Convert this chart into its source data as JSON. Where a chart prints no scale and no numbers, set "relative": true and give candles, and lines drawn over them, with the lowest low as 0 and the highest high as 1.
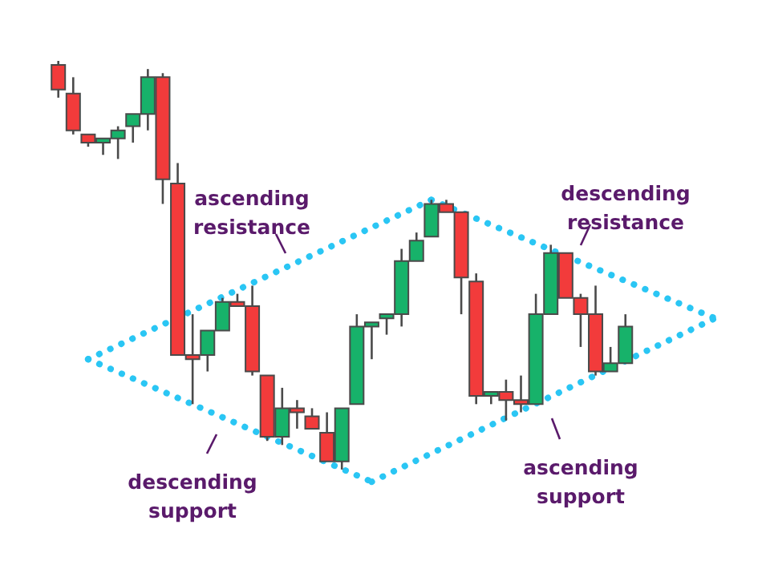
{
  "chart_data": {
    "type": "candlestick",
    "relative": true,
    "categories": [
      null,
      null,
      null,
      null,
      null,
      null,
      null,
      null,
      null,
      null,
      null,
      null,
      null,
      null,
      null,
      null,
      null,
      null,
      null,
      null,
      null,
      null,
      null,
      null,
      null,
      null,
      null,
      null,
      null,
      null,
      null,
      null,
      null,
      null,
      null,
      null,
      null,
      null,
      null,
      null,
      null,
      null,
      null,
      null,
      null
    ],
    "ohlc": [
      [
        0.99,
        1,
        0.91,
        0.93
      ],
      [
        0.92,
        0.96,
        0.82,
        0.83
      ],
      [
        0.82,
        0.82,
        0.79,
        0.8
      ],
      [
        0.8,
        0.81,
        0.77,
        0.81
      ],
      [
        0.81,
        0.84,
        0.76,
        0.83
      ],
      [
        0.84,
        0.87,
        0.8,
        0.87
      ],
      [
        0.87,
        0.98,
        0.83,
        0.96
      ],
      [
        0.96,
        0.97,
        0.65,
        0.71
      ],
      [
        0.7,
        0.75,
        0.28,
        0.28
      ],
      [
        0.28,
        0.38,
        0.16,
        0.27
      ],
      [
        0.28,
        0.34,
        0.24,
        0.34
      ],
      [
        0.34,
        0.42,
        0.34,
        0.41
      ],
      [
        0.41,
        0.43,
        0.4,
        0.4
      ],
      [
        0.4,
        0.45,
        0.23,
        0.24
      ],
      [
        0.23,
        0.23,
        0.07,
        0.08
      ],
      [
        0.08,
        0.2,
        0.06,
        0.15
      ],
      [
        0.15,
        0.17,
        0.1,
        0.14
      ],
      [
        0.13,
        0.15,
        0.1,
        0.1
      ],
      [
        0.09,
        0.14,
        0.02,
        0.02
      ],
      [
        0.02,
        0.15,
        0,
        0.15
      ],
      [
        0.16,
        0.38,
        0.16,
        0.35
      ],
      [
        0.35,
        0.36,
        0.27,
        0.36
      ],
      [
        0.37,
        0.38,
        0.33,
        0.38
      ],
      [
        0.38,
        0.54,
        0.35,
        0.51
      ],
      [
        0.51,
        0.58,
        0.51,
        0.56
      ],
      [
        0.57,
        0.66,
        0.57,
        0.65
      ],
      [
        0.65,
        0.66,
        0.63,
        0.63
      ],
      [
        0.63,
        0.63,
        0.38,
        0.47
      ],
      [
        0.46,
        0.48,
        0.16,
        0.18
      ],
      [
        0.18,
        0.19,
        0.16,
        0.19
      ],
      [
        0.19,
        0.22,
        0.12,
        0.17
      ],
      [
        0.17,
        0.23,
        0.14,
        0.16
      ],
      [
        0.16,
        0.43,
        0.16,
        0.38
      ],
      [
        0.38,
        0.55,
        0.38,
        0.53
      ],
      [
        0.53,
        0.53,
        0.42,
        0.42
      ],
      [
        0.42,
        0.43,
        0.3,
        0.38
      ],
      [
        0.38,
        0.45,
        0.23,
        0.24
      ],
      [
        0.24,
        0.3,
        0.24,
        0.26
      ],
      [
        0.26,
        0.38,
        0.26,
        0.35
      ],
      null,
      null,
      null,
      null,
      null,
      null
    ],
    "colors": [
      "#f23b3b",
      "#f23b3b",
      "#f23b3b",
      "#17b26a",
      "#17b26a",
      "#17b26a",
      "#17b26a",
      "#f23b3b",
      "#f23b3b",
      "#f23b3b",
      "#17b26a",
      "#17b26a",
      "#f23b3b",
      "#f23b3b",
      "#f23b3b",
      "#17b26a",
      "#f23b3b",
      "#f23b3b",
      "#f23b3b",
      "#17b26a",
      "#17b26a",
      "#17b26a",
      "#17b26a",
      "#17b26a",
      "#17b26a",
      "#17b26a",
      "#f23b3b",
      "#f23b3b",
      "#f23b3b",
      "#17b26a",
      "#f23b3b",
      "#f23b3b",
      "#17b26a",
      "#17b26a",
      "#f23b3b",
      "#f23b3b",
      "#f23b3b",
      "#17b26a",
      "#17b26a",
      null,
      null,
      null,
      null,
      null,
      null
    ],
    "series": [
      {
        "type": "line",
        "color": "#2ac6f4",
        "values": [
          null,
          null,
          0.27,
          null,
          null,
          null,
          null,
          null,
          null,
          null,
          null,
          null,
          null,
          null,
          null,
          null,
          null,
          null,
          null,
          null,
          null,
          null,
          null,
          null,
          null,
          0.66,
          null,
          null,
          null,
          null,
          null,
          null,
          null,
          null,
          null,
          null,
          null,
          null,
          null,
          null,
          null,
          null,
          null,
          null,
          null
        ]
      },
      {
        "type": "line",
        "color": "#2ac6f4",
        "values": [
          null,
          null,
          null,
          null,
          null,
          null,
          null,
          null,
          null,
          null,
          null,
          null,
          null,
          null,
          null,
          null,
          null,
          null,
          null,
          null,
          null,
          null,
          null,
          null,
          null,
          0.66,
          null,
          null,
          null,
          null,
          null,
          null,
          null,
          null,
          null,
          null,
          null,
          null,
          null,
          null,
          null,
          null,
          null,
          null,
          0.37
        ]
      },
      {
        "type": "line",
        "color": "#2ac6f4",
        "values": [
          null,
          null,
          0.27,
          null,
          null,
          null,
          null,
          null,
          null,
          null,
          null,
          null,
          null,
          null,
          null,
          null,
          null,
          null,
          null,
          null,
          null,
          -0.03,
          null,
          null,
          null,
          null,
          null,
          null,
          null,
          null,
          null,
          null,
          null,
          null,
          null,
          null,
          null,
          null,
          null,
          null,
          null,
          null,
          null,
          null,
          null
        ]
      },
      {
        "type": "line",
        "color": "#2ac6f4",
        "values": [
          null,
          null,
          null,
          null,
          null,
          null,
          null,
          null,
          null,
          null,
          null,
          null,
          null,
          null,
          null,
          null,
          null,
          null,
          null,
          null,
          null,
          -0.03,
          null,
          null,
          null,
          null,
          null,
          null,
          null,
          null,
          null,
          null,
          null,
          null,
          null,
          null,
          null,
          null,
          null,
          null,
          null,
          null,
          null,
          null,
          0.37
        ]
      }
    ],
    "line_style": "dotted",
    "annotations": [
      "ascending resistance",
      "descending resistance",
      "descending support",
      "ascending support"
    ]
  }
}
